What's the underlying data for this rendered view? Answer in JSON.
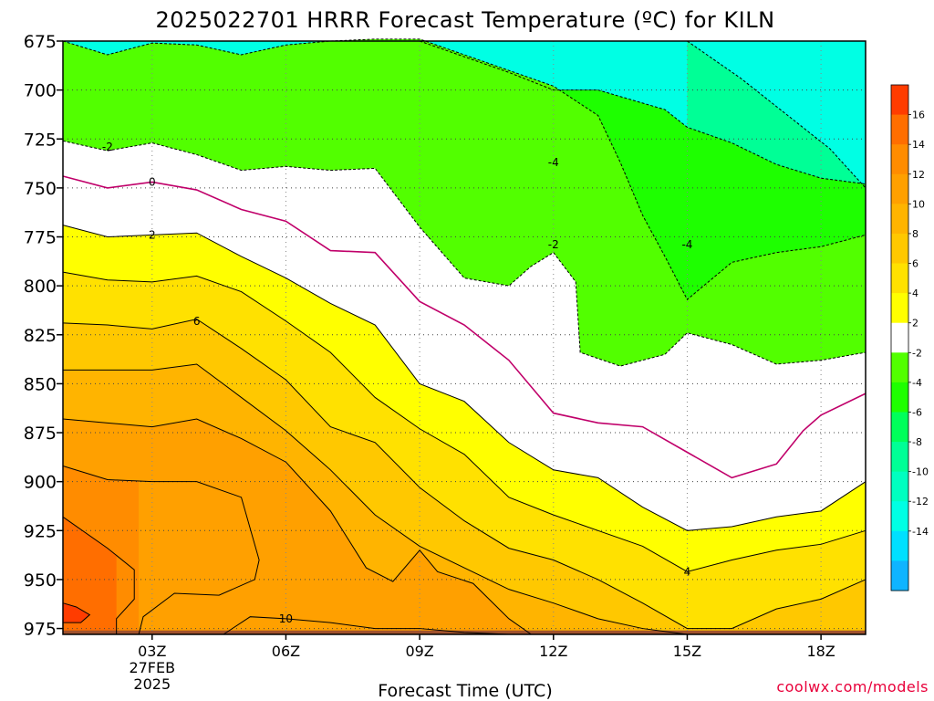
{
  "chart_data": {
    "type": "heatmap",
    "title": "2025022701 HRRR Forecast Temperature (ºC) for KILN",
    "xlabel": "Forecast Time (UTC)",
    "ylabel": "",
    "credit": "coolwx.com/models",
    "x_ticks": [
      {
        "hour": 3,
        "lines": [
          "03Z",
          "27FEB",
          "2025"
        ]
      },
      {
        "hour": 6,
        "lines": [
          "06Z"
        ]
      },
      {
        "hour": 9,
        "lines": [
          "09Z"
        ]
      },
      {
        "hour": 12,
        "lines": [
          "12Z"
        ]
      },
      {
        "hour": 15,
        "lines": [
          "15Z"
        ]
      },
      {
        "hour": 18,
        "lines": [
          "18Z"
        ]
      }
    ],
    "xlim": [
      1,
      19
    ],
    "y_ticks": [
      675,
      700,
      725,
      750,
      775,
      800,
      825,
      850,
      875,
      900,
      925,
      950,
      975
    ],
    "ylim": [
      675,
      978
    ],
    "y_scale": "pressure (hPa), inverted",
    "grid": true,
    "colorbar": {
      "levels": [
        -16,
        -14,
        -12,
        -10,
        -8,
        -6,
        -4,
        -2,
        2,
        4,
        6,
        8,
        10,
        12,
        14,
        16,
        18
      ],
      "labels": [
        -14,
        -12,
        -10,
        -8,
        -6,
        -4,
        -2,
        2,
        4,
        6,
        8,
        10,
        12,
        14,
        16
      ],
      "colors": [
        "#0fb4ff",
        "#00e0ff",
        "#00ffe4",
        "#00ffc0",
        "#00ff96",
        "#00ff5a",
        "#1eff00",
        "#52ff00",
        "#ffffff",
        "#ffff00",
        "#ffe100",
        "#ffc800",
        "#ffb400",
        "#ffa000",
        "#ff8c00",
        "#ff6e00",
        "#ff3c00"
      ],
      "placement": "right"
    },
    "series": [
      {
        "name": "-6",
        "style": "dashed",
        "points": [
          [
            15.0,
            675
          ],
          [
            16.2,
            694
          ],
          [
            17.2,
            712
          ],
          [
            18.2,
            730
          ],
          [
            19,
            750
          ]
        ]
      },
      {
        "name": "-4",
        "style": "dashed",
        "points": [
          [
            9.0,
            675
          ],
          [
            11.0,
            691
          ],
          [
            12.0,
            700
          ],
          [
            13.0,
            700
          ],
          [
            14.5,
            710
          ],
          [
            15.0,
            719
          ],
          [
            16.0,
            727
          ],
          [
            17.0,
            738
          ],
          [
            18.0,
            745
          ],
          [
            19,
            748
          ]
        ]
      },
      {
        "name": "-2",
        "style": "dashed",
        "points": [
          [
            1,
            675
          ],
          [
            2,
            682
          ],
          [
            3,
            676
          ],
          [
            4,
            677
          ],
          [
            5,
            682
          ],
          [
            6,
            677
          ],
          [
            7,
            675
          ],
          [
            8,
            674
          ],
          [
            9,
            674
          ],
          [
            10,
            682
          ],
          [
            11,
            690
          ],
          [
            12,
            698
          ],
          [
            13,
            713
          ],
          [
            13.5,
            737
          ],
          [
            14,
            764
          ],
          [
            14.5,
            785
          ],
          [
            15,
            807
          ],
          [
            16,
            788
          ],
          [
            17,
            783
          ],
          [
            18,
            780
          ],
          [
            19,
            774
          ]
        ]
      },
      {
        "name": "-2",
        "style": "dashed",
        "points": [
          [
            1,
            726
          ],
          [
            2,
            731
          ],
          [
            3,
            727
          ],
          [
            4,
            733
          ],
          [
            5,
            741
          ],
          [
            6,
            739
          ],
          [
            7,
            741
          ],
          [
            8,
            740
          ],
          [
            9,
            770
          ],
          [
            10,
            796
          ],
          [
            11,
            800
          ],
          [
            11.5,
            790
          ],
          [
            12,
            783
          ],
          [
            12.5,
            798
          ],
          [
            12.6,
            834
          ],
          [
            13.5,
            841
          ],
          [
            14.5,
            835
          ],
          [
            15,
            824
          ],
          [
            16,
            830
          ],
          [
            17,
            840
          ],
          [
            18,
            838
          ],
          [
            19,
            834
          ]
        ]
      },
      {
        "name": "0",
        "style": "solid",
        "color": "#c0006a",
        "points": [
          [
            1,
            744
          ],
          [
            2,
            750
          ],
          [
            3,
            747
          ],
          [
            4,
            751
          ],
          [
            5,
            761
          ],
          [
            6,
            767
          ],
          [
            7,
            782
          ],
          [
            8,
            783
          ],
          [
            9,
            808
          ],
          [
            10,
            820
          ],
          [
            11,
            838
          ],
          [
            12,
            865
          ],
          [
            13,
            870
          ],
          [
            14,
            872
          ],
          [
            15,
            885
          ],
          [
            16,
            898
          ],
          [
            17,
            891
          ],
          [
            17.6,
            874
          ],
          [
            18,
            866
          ],
          [
            19,
            855
          ]
        ]
      },
      {
        "name": "2",
        "style": "solid",
        "points": [
          [
            1,
            769
          ],
          [
            2,
            775
          ],
          [
            3,
            774
          ],
          [
            4,
            773
          ],
          [
            5,
            785
          ],
          [
            6,
            796
          ],
          [
            7,
            809
          ],
          [
            8,
            820
          ],
          [
            9,
            850
          ],
          [
            10,
            859
          ],
          [
            11,
            880
          ],
          [
            12,
            894
          ],
          [
            13,
            898
          ],
          [
            14,
            913
          ],
          [
            15,
            925
          ],
          [
            16,
            923
          ],
          [
            17,
            918
          ],
          [
            18,
            915
          ],
          [
            19,
            900
          ]
        ]
      },
      {
        "name": "4",
        "style": "solid",
        "points": [
          [
            1,
            793
          ],
          [
            2,
            797
          ],
          [
            3,
            798
          ],
          [
            4,
            795
          ],
          [
            5,
            803
          ],
          [
            6,
            818
          ],
          [
            7,
            834
          ],
          [
            8,
            857
          ],
          [
            9,
            873
          ],
          [
            10,
            886
          ],
          [
            11,
            908
          ],
          [
            12,
            917
          ],
          [
            13,
            925
          ],
          [
            14,
            933
          ],
          [
            15,
            946
          ],
          [
            16,
            940
          ],
          [
            17,
            935
          ],
          [
            18,
            932
          ],
          [
            19,
            925
          ]
        ]
      },
      {
        "name": "6",
        "style": "solid",
        "points": [
          [
            1,
            819
          ],
          [
            2,
            820
          ],
          [
            3,
            822
          ],
          [
            4,
            817
          ],
          [
            5,
            832
          ],
          [
            6,
            848
          ],
          [
            7,
            872
          ],
          [
            8,
            880
          ],
          [
            9,
            903
          ],
          [
            10,
            920
          ],
          [
            11,
            934
          ],
          [
            12,
            940
          ],
          [
            13,
            950
          ],
          [
            14,
            962
          ],
          [
            15,
            975
          ],
          [
            16,
            975
          ],
          [
            17,
            965
          ],
          [
            18,
            960
          ],
          [
            19,
            950
          ]
        ]
      },
      {
        "name": "8",
        "style": "solid",
        "points": [
          [
            1,
            843
          ],
          [
            2,
            843
          ],
          [
            3,
            843
          ],
          [
            4,
            840
          ],
          [
            5,
            857
          ],
          [
            6,
            874
          ],
          [
            7,
            894
          ],
          [
            8,
            917
          ],
          [
            9,
            933
          ],
          [
            10,
            944
          ],
          [
            11,
            955
          ],
          [
            12,
            962
          ],
          [
            13,
            970
          ],
          [
            14,
            975
          ],
          [
            15,
            978
          ]
        ]
      },
      {
        "name": "10",
        "style": "solid",
        "points": [
          [
            1,
            868
          ],
          [
            2,
            870
          ],
          [
            3,
            872
          ],
          [
            4,
            868
          ],
          [
            5,
            878
          ],
          [
            6,
            890
          ],
          [
            7,
            915
          ],
          [
            7.8,
            944
          ],
          [
            8.4,
            951
          ],
          [
            9.0,
            935
          ],
          [
            9.4,
            946
          ],
          [
            10.2,
            952
          ],
          [
            11,
            970
          ],
          [
            11.5,
            978
          ]
        ]
      },
      {
        "name": "12",
        "style": "solid",
        "points": [
          [
            1,
            892
          ],
          [
            2,
            899
          ],
          [
            3,
            900
          ],
          [
            4,
            900
          ],
          [
            5,
            908
          ],
          [
            5.4,
            940
          ],
          [
            5.3,
            950
          ],
          [
            4.5,
            958
          ],
          [
            3.5,
            957
          ],
          [
            2.8,
            969
          ],
          [
            2.7,
            978
          ]
        ]
      },
      {
        "name": "14",
        "style": "solid",
        "points": [
          [
            1,
            918
          ],
          [
            2,
            934
          ],
          [
            2.6,
            945
          ],
          [
            2.6,
            960
          ],
          [
            2.2,
            970
          ],
          [
            2.2,
            978
          ]
        ]
      },
      {
        "name": "10",
        "style": "solid",
        "points": [
          [
            4.6,
            978
          ],
          [
            5.2,
            969
          ],
          [
            6.0,
            970
          ],
          [
            7.0,
            972
          ],
          [
            8.0,
            975
          ],
          [
            9.0,
            975
          ],
          [
            10,
            977
          ],
          [
            11,
            978
          ]
        ]
      },
      {
        "name": "16",
        "style": "solid",
        "points": [
          [
            1,
            962
          ],
          [
            1.3,
            964
          ],
          [
            1.6,
            968
          ],
          [
            1.4,
            972
          ],
          [
            1,
            972
          ]
        ]
      }
    ],
    "contour_labels": [
      {
        "text": "-2",
        "x": 2.0,
        "y": 729
      },
      {
        "text": "0",
        "x": 3.0,
        "y": 747
      },
      {
        "text": "2",
        "x": 3.0,
        "y": 774
      },
      {
        "text": "6",
        "x": 4.0,
        "y": 818
      },
      {
        "text": "10",
        "x": 6.0,
        "y": 970
      },
      {
        "text": "-4",
        "x": 12.0,
        "y": 737
      },
      {
        "text": "-2",
        "x": 12.0,
        "y": 779
      },
      {
        "text": "-4",
        "x": 15.0,
        "y": 779
      },
      {
        "text": "4",
        "x": 15.0,
        "y": 946
      }
    ],
    "bands": {
      "order": [
        "b-6",
        "b-4",
        "b-2top",
        "bwhite",
        "y2",
        "y4",
        "o6",
        "o8",
        "o10",
        "o12",
        "o14",
        "o16"
      ],
      "b-6": {
        "color": "#00ffe4",
        "lower": "-6"
      },
      "b-4": {
        "color": "#00ff96",
        "lower": "-4"
      },
      "b-2top": {
        "color": "#1eff00",
        "lower": "-2a"
      },
      "bwhite": {
        "color": "#ffffff",
        "lower": "2"
      },
      "y2": {
        "color": "#ffff00",
        "lower": "4"
      },
      "y4": {
        "color": "#ffe100",
        "lower": "6"
      },
      "o6": {
        "color": "#ffc800",
        "lower": "8"
      },
      "o8": {
        "color": "#ffb400",
        "lower": "10"
      },
      "o10": {
        "color": "#ffa000",
        "lower": "12"
      },
      "o12": {
        "color": "#ff8c00",
        "lower": "14"
      },
      "o14": {
        "color": "#ff6e00",
        "lower": "16"
      }
    }
  }
}
